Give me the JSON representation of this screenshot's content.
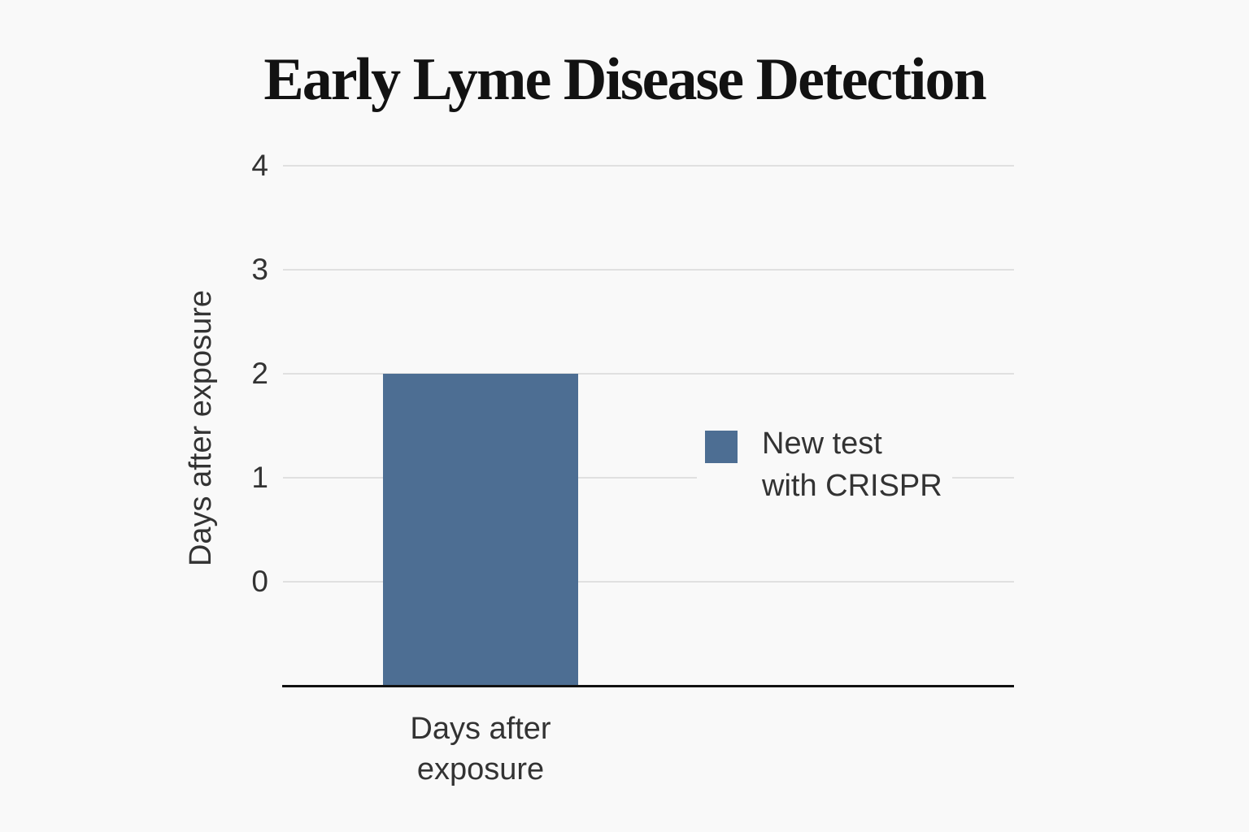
{
  "title": "Early Lyme Disease Detection",
  "chart_data": {
    "type": "bar",
    "title": "Early Lyme Disease Detection",
    "categories": [
      "Days after exposure"
    ],
    "series": [
      {
        "name": "New test with CRISPR",
        "values": [
          2
        ]
      }
    ],
    "xlabel": "",
    "ylabel": "Days after exposure",
    "ylim": [
      -1,
      4
    ],
    "yticks": [
      0,
      1,
      2,
      3,
      4
    ],
    "grid": true,
    "legend_position": "right",
    "bar_color": "#4d6e93",
    "grid_color": "#e0e0e0",
    "axis_color": "#111111",
    "text_color": "#333333",
    "background_color": "#f9f9f9"
  },
  "y_axis": {
    "label": "Days after exposure",
    "ticks": [
      "0",
      "1",
      "2",
      "3",
      "4"
    ]
  },
  "x_axis": {
    "category_label": "Days after\nexposure"
  },
  "legend": {
    "label": "New test\nwith CRISPR",
    "swatch_color": "#4d6e93"
  }
}
